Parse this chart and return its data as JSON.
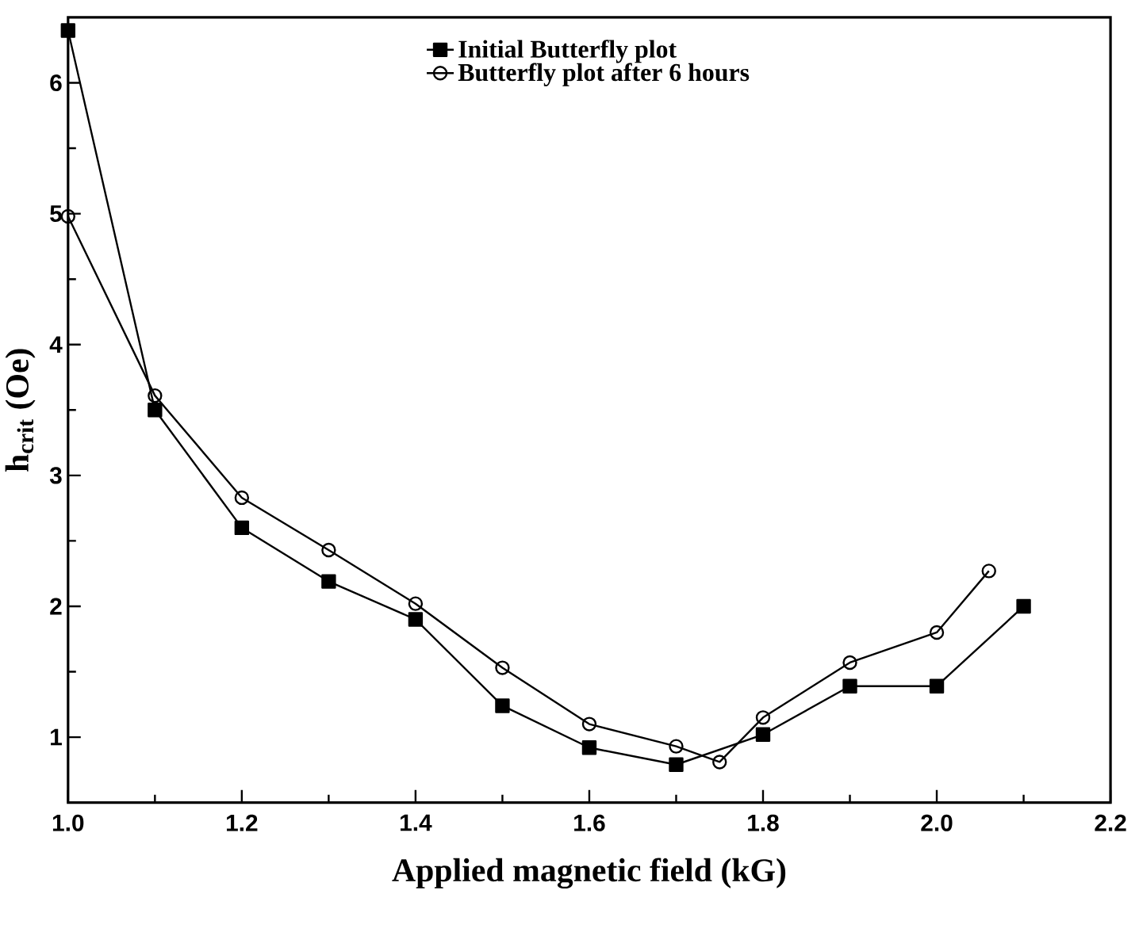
{
  "chart_data": {
    "type": "line",
    "xlabel": "Applied magnetic field (kG)",
    "ylabel": "h$_{crit}$ (Oe)",
    "xlim": [
      1.0,
      2.2
    ],
    "xticks": [
      {
        "value": 1.0,
        "label": "1.0"
      },
      {
        "value": 1.2,
        "label": "1.2"
      },
      {
        "value": 1.4,
        "label": "1.4"
      },
      {
        "value": 1.6,
        "label": "1.6"
      },
      {
        "value": 1.8,
        "label": "1.8"
      },
      {
        "value": 2.0,
        "label": "2.0"
      },
      {
        "value": 2.2,
        "label": "2.2"
      }
    ],
    "ylim": [
      0.5,
      6.5
    ],
    "yticks": [
      1,
      2,
      3,
      4,
      5,
      6
    ],
    "legend": "top",
    "grid": false,
    "series": [
      {
        "name": "Initial Butterfly plot",
        "color": "#000000",
        "marker": "square",
        "x": [
          1.0,
          1.1,
          1.2,
          1.3,
          1.4,
          1.5,
          1.6,
          1.7,
          1.8,
          1.9,
          2.0,
          2.1
        ],
        "values": [
          6.4,
          3.5,
          2.6,
          2.19,
          1.9,
          1.24,
          0.92,
          0.79,
          1.02,
          1.39,
          1.39,
          2.0
        ]
      },
      {
        "name": "Butterfly plot after 6 hours",
        "color": "#000000",
        "marker": "circle",
        "x": [
          1.0,
          1.1,
          1.2,
          1.3,
          1.4,
          1.5,
          1.6,
          1.7,
          1.75,
          1.8,
          1.9,
          2.0,
          2.06
        ],
        "values": [
          4.98,
          3.61,
          2.83,
          2.43,
          2.02,
          1.53,
          1.1,
          0.93,
          0.81,
          1.15,
          1.57,
          1.8,
          2.27
        ]
      }
    ]
  }
}
